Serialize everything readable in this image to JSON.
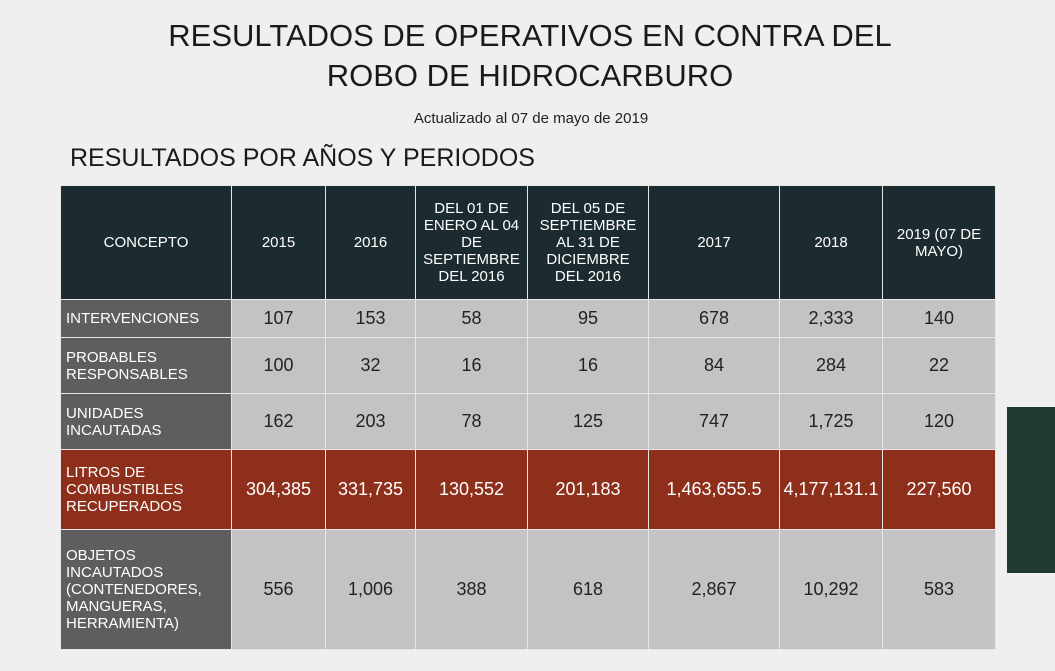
{
  "header": {
    "title_line1": "RESULTADOS DE OPERATIVOS EN CONTRA DEL",
    "title_line2": "ROBO DE HIDROCARBURO",
    "updated": "Actualizado al 07 de mayo de 2019",
    "section": "RESULTADOS POR AÑOS Y PERIODOS"
  },
  "table": {
    "columns": [
      "CONCEPTO",
      "2015",
      "2016",
      "DEL 01 DE ENERO AL 04 DE SEPTIEMBRE DEL 2016",
      "DEL 05 DE SEPTIEMBRE AL 31 DE DICIEMBRE DEL 2016",
      "2017",
      "2018",
      "2019 (07 DE MAYO)"
    ],
    "rows": [
      [
        "INTERVENCIONES",
        "107",
        "153",
        "58",
        "95",
        "678",
        "2,333",
        "140"
      ],
      [
        "PROBABLES RESPONSABLES",
        "100",
        "32",
        "16",
        "16",
        "84",
        "284",
        "22"
      ],
      [
        "UNIDADES INCAUTADAS",
        "162",
        "203",
        "78",
        "125",
        "747",
        "1,725",
        "120"
      ],
      [
        "LITROS DE COMBUSTIBLES RECUPERADOS",
        "304,385",
        "331,735",
        "130,552",
        "201,183",
        "1,463,655.5",
        "4,177,131.1",
        "227,560"
      ],
      [
        "OBJETOS INCAUTADOS (CONTENEDORES, MANGUERAS, HERRAMIENTA)",
        "556",
        "1,006",
        "388",
        "618",
        "2,867",
        "10,292",
        "583"
      ]
    ]
  }
}
